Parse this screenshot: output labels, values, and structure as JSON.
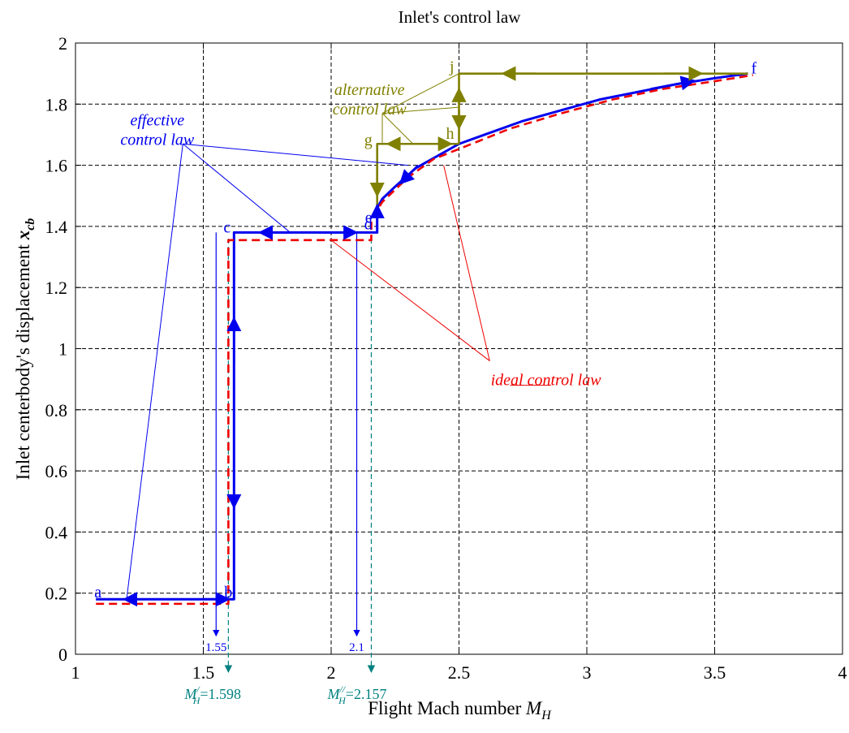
{
  "chart_data": {
    "type": "line",
    "title": "Inlet's control law",
    "xlabel": "Flight Mach number",
    "xlabel_symbol": "M",
    "xlabel_sub": "H",
    "ylabel": "Inlet centerbody's displacement",
    "ylabel_symbol": "x",
    "ylabel_sub": "cb",
    "xlim": [
      1,
      4
    ],
    "ylim": [
      0,
      2
    ],
    "xticks": [
      "1",
      "1.5",
      "2",
      "2.5",
      "3",
      "3.5",
      "4"
    ],
    "yticks": [
      "0",
      "0.2",
      "0.4",
      "0.6",
      "0.8",
      "1",
      "1.2",
      "1.4",
      "1.6",
      "1.8",
      "2"
    ],
    "grid": true,
    "colors": {
      "effective": "#0000ee",
      "ideal": "#ee0000",
      "alternative": "#808000",
      "marker": "#008080"
    },
    "series": [
      {
        "name": "effective control law",
        "style": "solid",
        "x": [
          1.08,
          1.62,
          1.62,
          2.18,
          2.18,
          2.2,
          2.25,
          2.33,
          2.5,
          2.6,
          2.75,
          2.9,
          3.05,
          3.2,
          3.35,
          3.5,
          3.63
        ],
        "y": [
          0.18,
          0.18,
          1.38,
          1.38,
          1.46,
          1.49,
          1.53,
          1.59,
          1.67,
          1.7,
          1.745,
          1.78,
          1.815,
          1.84,
          1.865,
          1.885,
          1.9
        ]
      },
      {
        "name": "ideal control law",
        "style": "dashed",
        "x": [
          1.08,
          1.598,
          1.598,
          2.157,
          2.157,
          2.2,
          2.3,
          2.4,
          2.55,
          2.7,
          2.9,
          3.1,
          3.3,
          3.5,
          3.65
        ],
        "y": [
          0.165,
          0.165,
          1.355,
          1.355,
          1.42,
          1.48,
          1.56,
          1.62,
          1.67,
          1.72,
          1.77,
          1.815,
          1.85,
          1.875,
          1.895
        ]
      },
      {
        "name": "alternative control law",
        "style": "solid",
        "x": [
          2.5,
          2.18,
          2.18
        ],
        "y": [
          1.67,
          1.67,
          1.46
        ]
      },
      {
        "name": "alternative control law upper",
        "style": "solid",
        "x": [
          3.63,
          2.5,
          2.5
        ],
        "y": [
          1.9,
          1.9,
          1.67
        ]
      }
    ],
    "point_labels": [
      {
        "text": "a",
        "x": 1.08,
        "y": 0.18
      },
      {
        "text": "b",
        "x": 1.62,
        "y": 0.18
      },
      {
        "text": "c",
        "x": 1.62,
        "y": 1.38
      },
      {
        "text": "d",
        "x": 2.18,
        "y": 1.38
      },
      {
        "text": "e",
        "x": 2.18,
        "y": 1.46
      },
      {
        "text": "f",
        "x": 3.63,
        "y": 1.9
      },
      {
        "text": "g",
        "x": 2.18,
        "y": 1.67
      },
      {
        "text": "h",
        "x": 2.5,
        "y": 1.67
      },
      {
        "text": "j",
        "x": 2.5,
        "y": 1.9
      }
    ],
    "annotations": [
      {
        "text_lines": [
          "effective",
          "control law"
        ],
        "color": "effective",
        "x": 1.32,
        "y": 1.73
      },
      {
        "text_lines": [
          "ideal control law"
        ],
        "color": "ideal",
        "x": 2.84,
        "y": 0.88
      },
      {
        "text_lines": [
          "alternative",
          "control law"
        ],
        "color": "alternative",
        "x": 2.15,
        "y": 1.83
      }
    ],
    "mach_markers": [
      {
        "value": 1.55,
        "label": "1.55",
        "color": "effective"
      },
      {
        "value": 2.1,
        "label": "2.1",
        "color": "effective"
      },
      {
        "value": 1.598,
        "label_symbol": "M",
        "label_sub": "H",
        "label_prime": "/",
        "label_value": "=1.598",
        "color": "marker"
      },
      {
        "value": 2.157,
        "label_symbol": "M",
        "label_sub": "H",
        "label_prime": "//",
        "label_value": "=2.157",
        "color": "marker"
      }
    ]
  }
}
